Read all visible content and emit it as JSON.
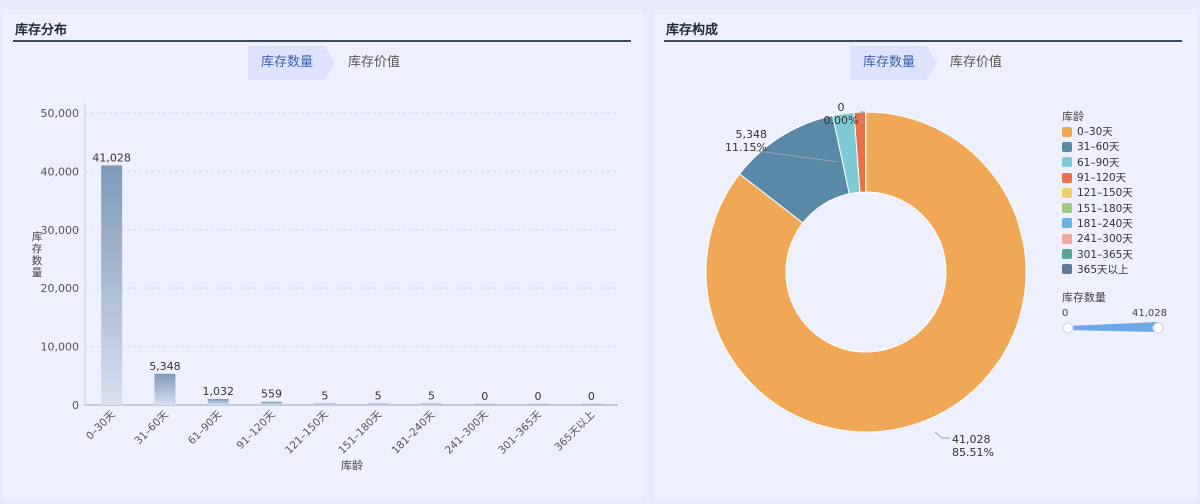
{
  "left_panel": {
    "title": "库存分布",
    "tabs": [
      {
        "label": "库存数量",
        "active": true
      },
      {
        "label": "库存价值",
        "active": false
      }
    ]
  },
  "right_panel": {
    "title": "库存构成",
    "tabs": [
      {
        "label": "库存数量",
        "active": true
      },
      {
        "label": "库存价值",
        "active": false
      }
    ],
    "legend_title": "库龄",
    "visual_map": {
      "title": "库存数量",
      "min_label": "0",
      "max_label": "41,028"
    }
  },
  "chart_data": [
    {
      "type": "bar",
      "title": "",
      "xlabel": "库龄",
      "ylabel": "库存数量",
      "ylim": [
        0,
        50000
      ],
      "yticks": [
        0,
        10000,
        20000,
        30000,
        40000,
        50000
      ],
      "ytick_labels": [
        "0",
        "10,000",
        "20,000",
        "30,000",
        "40,000",
        "50,000"
      ],
      "categories": [
        "0–30天",
        "31–60天",
        "61–90天",
        "91–120天",
        "121–150天",
        "151–180天",
        "181–240天",
        "241–300天",
        "301–365天",
        "365天以上"
      ],
      "values": [
        41028,
        5348,
        1032,
        559,
        5,
        5,
        5,
        0,
        0,
        0
      ],
      "value_labels": [
        "41,028",
        "5,348",
        "1,032",
        "559",
        "5",
        "5",
        "5",
        "0",
        "0",
        "0"
      ],
      "grid": true,
      "bar_color": "#7f9ab9"
    },
    {
      "type": "pie",
      "title": "",
      "legend_position": "right",
      "categories": [
        "0–30天",
        "31–60天",
        "61–90天",
        "91–120天",
        "121–150天",
        "151–180天",
        "181–240天",
        "241–300天",
        "301–365天",
        "365天以上"
      ],
      "values": [
        41028,
        5348,
        1032,
        559,
        5,
        5,
        5,
        0,
        0,
        0
      ],
      "colors": [
        "#f0a857",
        "#5a89a8",
        "#7ecbd6",
        "#e8714a",
        "#f0ce6b",
        "#9ccb7e",
        "#66b3e0",
        "#f4a897",
        "#5aa69a",
        "#5f7898"
      ],
      "annotations": [
        {
          "category": "0–30天",
          "value_label": "41,028",
          "percent_label": "85.51%"
        },
        {
          "category": "31–60天",
          "value_label": "5,348",
          "percent_label": "11.15%"
        },
        {
          "value_label": "0",
          "percent_label": "0.00%"
        }
      ]
    }
  ]
}
